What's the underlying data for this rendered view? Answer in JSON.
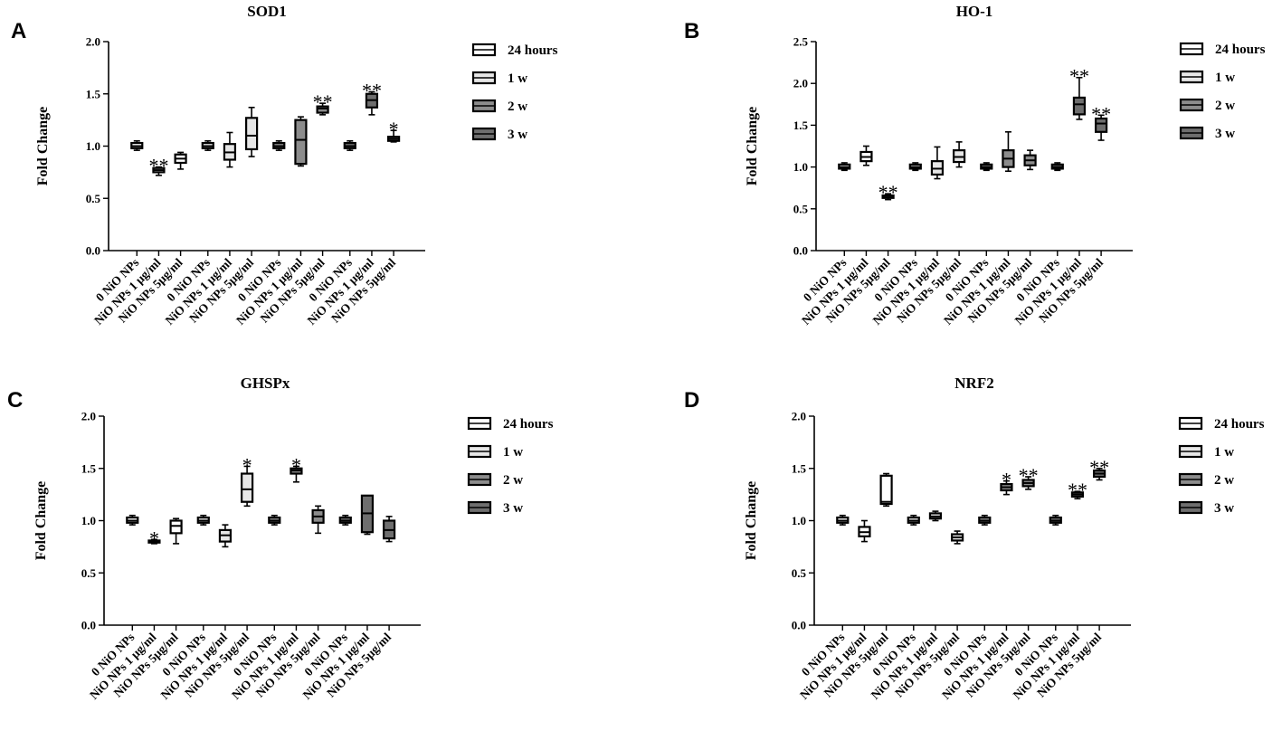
{
  "colors": {
    "fill_24h": "#ffffff",
    "fill_1w": "#e6e6e6",
    "fill_2w": "#8c8c8c",
    "fill_3w": "#6e6e6e",
    "stroke": "#000000"
  },
  "chart_data": [
    {
      "panel": "A",
      "type": "box",
      "title": "SOD1",
      "ylabel": "Fold Change",
      "xlabel": "",
      "ylim": [
        0,
        2.0
      ],
      "yticks": [
        "0.0",
        "0.5",
        "1.0",
        "1.5",
        "2.0"
      ],
      "legend": {
        "position": "right",
        "entries": [
          {
            "label": "24 hours",
            "color": "#ffffff"
          },
          {
            "label": "1 w",
            "color": "#e6e6e6"
          },
          {
            "label": "2 w",
            "color": "#8c8c8c"
          },
          {
            "label": "3 w",
            "color": "#6e6e6e"
          }
        ]
      },
      "groups": [
        {
          "name": "24 hours",
          "boxes": [
            {
              "category": "0 NiO NPs",
              "min": 0.96,
              "q1": 0.98,
              "median": 1.0,
              "q3": 1.03,
              "max": 1.05,
              "sig": ""
            },
            {
              "category": "NiO NPs 1 μg/ml",
              "min": 0.72,
              "q1": 0.75,
              "median": 0.77,
              "q3": 0.79,
              "max": 0.8,
              "sig": "**"
            },
            {
              "category": "NiO NPs 5μg/ml",
              "min": 0.78,
              "q1": 0.84,
              "median": 0.88,
              "q3": 0.92,
              "max": 0.94,
              "sig": ""
            }
          ]
        },
        {
          "name": "1 w",
          "boxes": [
            {
              "category": "0 NiO NPs",
              "min": 0.96,
              "q1": 0.98,
              "median": 1.0,
              "q3": 1.03,
              "max": 1.05,
              "sig": ""
            },
            {
              "category": "NiO NPs 1 μg/ml",
              "min": 0.8,
              "q1": 0.87,
              "median": 0.94,
              "q3": 1.02,
              "max": 1.13,
              "sig": ""
            },
            {
              "category": "NiO NPs 5μg/ml",
              "min": 0.9,
              "q1": 0.97,
              "median": 1.1,
              "q3": 1.27,
              "max": 1.37,
              "sig": ""
            }
          ]
        },
        {
          "name": "2 w",
          "boxes": [
            {
              "category": "0 NiO NPs",
              "min": 0.96,
              "q1": 0.98,
              "median": 1.0,
              "q3": 1.03,
              "max": 1.05,
              "sig": ""
            },
            {
              "category": "NiO NPs 1 μg/ml",
              "min": 0.81,
              "q1": 0.83,
              "median": 1.06,
              "q3": 1.25,
              "max": 1.28,
              "sig": ""
            },
            {
              "category": "NiO NPs 5μg/ml",
              "min": 1.3,
              "q1": 1.32,
              "median": 1.36,
              "q3": 1.38,
              "max": 1.41,
              "sig": "**"
            }
          ]
        },
        {
          "name": "3 w",
          "boxes": [
            {
              "category": "0 NiO NPs",
              "min": 0.96,
              "q1": 0.98,
              "median": 1.0,
              "q3": 1.03,
              "max": 1.05,
              "sig": ""
            },
            {
              "category": "NiO NPs 1 μg/ml",
              "min": 1.3,
              "q1": 1.37,
              "median": 1.44,
              "q3": 1.5,
              "max": 1.52,
              "sig": "**"
            },
            {
              "category": "NiO NPs 5μg/ml",
              "min": 1.04,
              "q1": 1.05,
              "median": 1.07,
              "q3": 1.09,
              "max": 1.15,
              "sig": "*"
            }
          ]
        }
      ]
    },
    {
      "panel": "B",
      "type": "box",
      "title": "HO-1",
      "ylabel": "Fold Change",
      "xlabel": "",
      "ylim": [
        0,
        2.5
      ],
      "yticks": [
        "0.0",
        "0.5",
        "1.0",
        "1.5",
        "2.0",
        "2.5"
      ],
      "legend": {
        "position": "right",
        "entries": [
          {
            "label": "24 hours",
            "color": "#ffffff"
          },
          {
            "label": "1 w",
            "color": "#e6e6e6"
          },
          {
            "label": "2 w",
            "color": "#8c8c8c"
          },
          {
            "label": "3 w",
            "color": "#6e6e6e"
          }
        ]
      },
      "groups": [
        {
          "name": "24 hours",
          "boxes": [
            {
              "category": "0 NiO NPs",
              "min": 0.96,
              "q1": 0.98,
              "median": 1.0,
              "q3": 1.03,
              "max": 1.05,
              "sig": ""
            },
            {
              "category": "NiO NPs 1 μg/ml",
              "min": 1.02,
              "q1": 1.07,
              "median": 1.12,
              "q3": 1.18,
              "max": 1.25,
              "sig": ""
            },
            {
              "category": "NiO NPs 5μg/ml",
              "min": 0.61,
              "q1": 0.63,
              "median": 0.65,
              "q3": 0.66,
              "max": 0.68,
              "sig": "**"
            }
          ]
        },
        {
          "name": "1 w",
          "boxes": [
            {
              "category": "0 NiO NPs",
              "min": 0.96,
              "q1": 0.98,
              "median": 1.0,
              "q3": 1.03,
              "max": 1.05,
              "sig": ""
            },
            {
              "category": "NiO NPs 1 μg/ml",
              "min": 0.86,
              "q1": 0.91,
              "median": 0.98,
              "q3": 1.07,
              "max": 1.24,
              "sig": ""
            },
            {
              "category": "NiO NPs 5μg/ml",
              "min": 1.0,
              "q1": 1.06,
              "median": 1.12,
              "q3": 1.2,
              "max": 1.3,
              "sig": ""
            }
          ]
        },
        {
          "name": "2 w",
          "boxes": [
            {
              "category": "0 NiO NPs",
              "min": 0.96,
              "q1": 0.98,
              "median": 1.0,
              "q3": 1.03,
              "max": 1.05,
              "sig": ""
            },
            {
              "category": "NiO NPs 1 μg/ml",
              "min": 0.95,
              "q1": 1.0,
              "median": 1.1,
              "q3": 1.2,
              "max": 1.42,
              "sig": ""
            },
            {
              "category": "NiO NPs 5μg/ml",
              "min": 0.97,
              "q1": 1.02,
              "median": 1.08,
              "q3": 1.14,
              "max": 1.2,
              "sig": ""
            }
          ]
        },
        {
          "name": "3 w",
          "boxes": [
            {
              "category": "0 NiO NPs",
              "min": 0.96,
              "q1": 0.98,
              "median": 1.0,
              "q3": 1.03,
              "max": 1.05,
              "sig": ""
            },
            {
              "category": "NiO NPs 1 μg/ml",
              "min": 1.57,
              "q1": 1.63,
              "median": 1.75,
              "q3": 1.83,
              "max": 2.07,
              "sig": "**"
            },
            {
              "category": "NiO NPs 5μg/ml",
              "min": 1.32,
              "q1": 1.42,
              "median": 1.52,
              "q3": 1.58,
              "max": 1.62,
              "sig": "**"
            }
          ]
        }
      ]
    },
    {
      "panel": "C",
      "type": "box",
      "title": "GHSPx",
      "ylabel": "Fold Change",
      "xlabel": "",
      "ylim": [
        0,
        2.0
      ],
      "yticks": [
        "0.0",
        "0.5",
        "1.0",
        "1.5",
        "2.0"
      ],
      "legend": {
        "position": "right",
        "entries": [
          {
            "label": "24 hours",
            "color": "#ffffff"
          },
          {
            "label": "1 w",
            "color": "#e6e6e6"
          },
          {
            "label": "2 w",
            "color": "#8c8c8c"
          },
          {
            "label": "3 w",
            "color": "#6e6e6e"
          }
        ]
      },
      "groups": [
        {
          "name": "24 hours",
          "boxes": [
            {
              "category": "0 NiO NPs",
              "min": 0.96,
              "q1": 0.98,
              "median": 1.0,
              "q3": 1.03,
              "max": 1.05,
              "sig": ""
            },
            {
              "category": "NiO NPs 1 μg/ml",
              "min": 0.78,
              "q1": 0.79,
              "median": 0.8,
              "q3": 0.81,
              "max": 0.82,
              "sig": "*"
            },
            {
              "category": "NiO NPs 5μg/ml",
              "min": 0.78,
              "q1": 0.88,
              "median": 0.95,
              "q3": 1.0,
              "max": 1.02,
              "sig": ""
            }
          ]
        },
        {
          "name": "1 w",
          "boxes": [
            {
              "category": "0 NiO NPs",
              "min": 0.96,
              "q1": 0.98,
              "median": 1.0,
              "q3": 1.03,
              "max": 1.05,
              "sig": ""
            },
            {
              "category": "NiO NPs 1 μg/ml",
              "min": 0.75,
              "q1": 0.8,
              "median": 0.86,
              "q3": 0.91,
              "max": 0.96,
              "sig": ""
            },
            {
              "category": "NiO NPs 5μg/ml",
              "min": 1.14,
              "q1": 1.18,
              "median": 1.3,
              "q3": 1.45,
              "max": 1.52,
              "sig": "*"
            }
          ]
        },
        {
          "name": "2 w",
          "boxes": [
            {
              "category": "0 NiO NPs",
              "min": 0.96,
              "q1": 0.98,
              "median": 1.0,
              "q3": 1.03,
              "max": 1.05,
              "sig": ""
            },
            {
              "category": "NiO NPs 1 μg/ml",
              "min": 1.37,
              "q1": 1.45,
              "median": 1.48,
              "q3": 1.5,
              "max": 1.52,
              "sig": "*"
            },
            {
              "category": "NiO NPs 5μg/ml",
              "min": 0.88,
              "q1": 0.98,
              "median": 1.04,
              "q3": 1.1,
              "max": 1.14,
              "sig": ""
            }
          ]
        },
        {
          "name": "3 w",
          "boxes": [
            {
              "category": "0 NiO NPs",
              "min": 0.96,
              "q1": 0.98,
              "median": 1.0,
              "q3": 1.03,
              "max": 1.05,
              "sig": ""
            },
            {
              "category": "NiO NPs 1 μg/ml",
              "min": 0.87,
              "q1": 0.89,
              "median": 1.07,
              "q3": 1.24,
              "max": 1.24,
              "sig": ""
            },
            {
              "category": "NiO NPs 5μg/ml",
              "min": 0.8,
              "q1": 0.83,
              "median": 0.91,
              "q3": 1.0,
              "max": 1.04,
              "sig": ""
            }
          ]
        }
      ]
    },
    {
      "panel": "D",
      "type": "box",
      "title": "NRF2",
      "ylabel": "Fold Change",
      "xlabel": "",
      "ylim": [
        0,
        2.0
      ],
      "yticks": [
        "0.0",
        "0.5",
        "1.0",
        "1.5",
        "2.0"
      ],
      "legend": {
        "position": "right",
        "entries": [
          {
            "label": "24 hours",
            "color": "#ffffff"
          },
          {
            "label": "1 w",
            "color": "#e6e6e6"
          },
          {
            "label": "2 w",
            "color": "#8c8c8c"
          },
          {
            "label": "3 w",
            "color": "#6e6e6e"
          }
        ]
      },
      "groups": [
        {
          "name": "24 hours",
          "boxes": [
            {
              "category": "0 NiO NPs",
              "min": 0.96,
              "q1": 0.98,
              "median": 1.0,
              "q3": 1.03,
              "max": 1.05,
              "sig": ""
            },
            {
              "category": "NiO NPs 1 μg/ml",
              "min": 0.8,
              "q1": 0.85,
              "median": 0.89,
              "q3": 0.94,
              "max": 1.0,
              "sig": ""
            },
            {
              "category": "NiO NPs 5μg/ml",
              "min": 1.14,
              "q1": 1.16,
              "median": 1.18,
              "q3": 1.43,
              "max": 1.45,
              "sig": ""
            }
          ]
        },
        {
          "name": "1 w",
          "boxes": [
            {
              "category": "0 NiO NPs",
              "min": 0.96,
              "q1": 0.98,
              "median": 1.0,
              "q3": 1.03,
              "max": 1.05,
              "sig": ""
            },
            {
              "category": "NiO NPs 1 μg/ml",
              "min": 1.0,
              "q1": 1.02,
              "median": 1.04,
              "q3": 1.07,
              "max": 1.09,
              "sig": ""
            },
            {
              "category": "NiO NPs 5μg/ml",
              "min": 0.78,
              "q1": 0.81,
              "median": 0.84,
              "q3": 0.87,
              "max": 0.9,
              "sig": ""
            }
          ]
        },
        {
          "name": "2 w",
          "boxes": [
            {
              "category": "0 NiO NPs",
              "min": 0.96,
              "q1": 0.98,
              "median": 1.0,
              "q3": 1.03,
              "max": 1.05,
              "sig": ""
            },
            {
              "category": "NiO NPs 1 μg/ml",
              "min": 1.25,
              "q1": 1.29,
              "median": 1.32,
              "q3": 1.35,
              "max": 1.38,
              "sig": "*"
            },
            {
              "category": "NiO NPs 5μg/ml",
              "min": 1.3,
              "q1": 1.33,
              "median": 1.36,
              "q3": 1.39,
              "max": 1.42,
              "sig": "**"
            }
          ]
        },
        {
          "name": "3 w",
          "boxes": [
            {
              "category": "0 NiO NPs",
              "min": 0.96,
              "q1": 0.98,
              "median": 1.0,
              "q3": 1.03,
              "max": 1.05,
              "sig": ""
            },
            {
              "category": "NiO NPs 1 μg/ml",
              "min": 1.21,
              "q1": 1.23,
              "median": 1.25,
              "q3": 1.27,
              "max": 1.28,
              "sig": "**"
            },
            {
              "category": "NiO NPs 5μg/ml",
              "min": 1.39,
              "q1": 1.42,
              "median": 1.45,
              "q3": 1.48,
              "max": 1.5,
              "sig": "**"
            }
          ]
        }
      ]
    }
  ]
}
